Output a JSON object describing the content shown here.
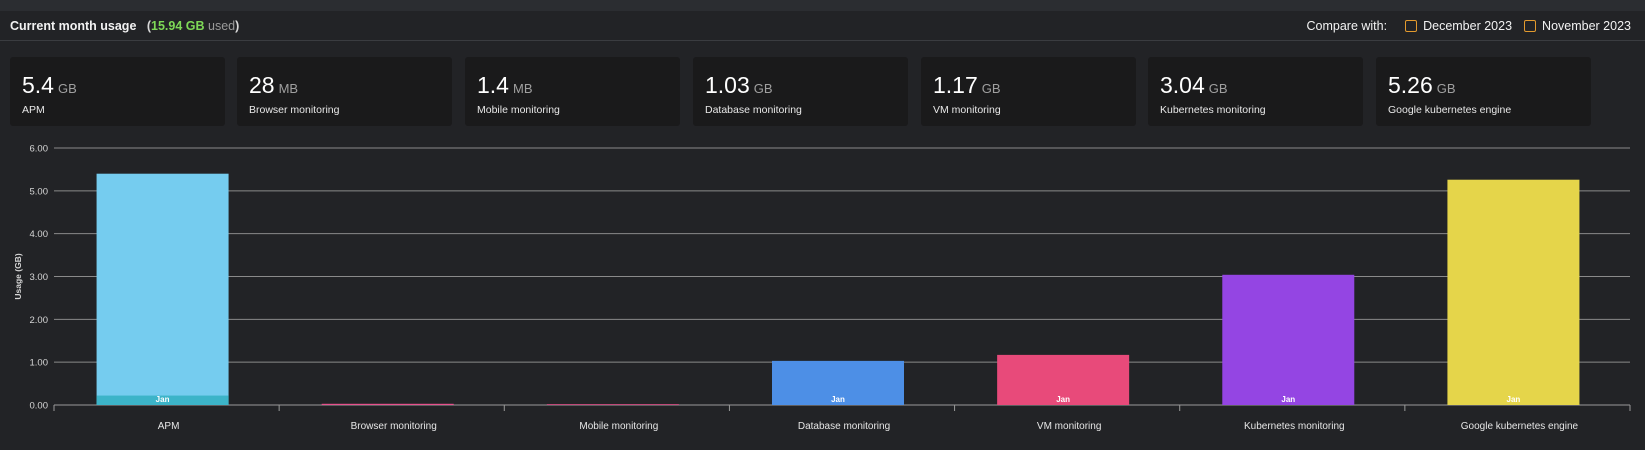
{
  "header": {
    "title": "Current month usage",
    "used_open": "(",
    "used_value": "15.94 GB",
    "used_label": "used",
    "used_close": ")",
    "compare_label": "Compare with:",
    "compare_options": [
      "December 2023",
      "November 2023"
    ]
  },
  "cards": [
    {
      "value": "5.4",
      "unit": "GB",
      "name": "APM"
    },
    {
      "value": "28",
      "unit": "MB",
      "name": "Browser monitoring"
    },
    {
      "value": "1.4",
      "unit": "MB",
      "name": "Mobile monitoring"
    },
    {
      "value": "1.03",
      "unit": "GB",
      "name": "Database monitoring"
    },
    {
      "value": "1.17",
      "unit": "GB",
      "name": "VM monitoring"
    },
    {
      "value": "3.04",
      "unit": "GB",
      "name": "Kubernetes monitoring"
    },
    {
      "value": "5.26",
      "unit": "GB",
      "name": "Google kubernetes engine"
    }
  ],
  "colors": {
    "green": "#7ed957",
    "checkbox": "#e39a2e",
    "bars": [
      "#75ccef",
      "#e6518d",
      "#e6518d",
      "#4d8fe6",
      "#e84a7a",
      "#9445e3",
      "#e5d54a"
    ],
    "jan_segment_apm": "#3cb4c8"
  },
  "chart_data": {
    "type": "bar",
    "categories": [
      "APM",
      "Browser monitoring",
      "Mobile monitoring",
      "Database monitoring",
      "VM monitoring",
      "Kubernetes monitoring",
      "Google kubernetes engine"
    ],
    "values": [
      5.4,
      0.028,
      0.0014,
      1.03,
      1.17,
      3.04,
      5.26
    ],
    "segment_label": "Jan",
    "apm_segment": 0.22,
    "ylabel": "Usage (GB)",
    "ylim": [
      0,
      6
    ],
    "yticks": [
      "0.00",
      "1.00",
      "2.00",
      "3.00",
      "4.00",
      "5.00",
      "6.00"
    ],
    "grid": true
  }
}
